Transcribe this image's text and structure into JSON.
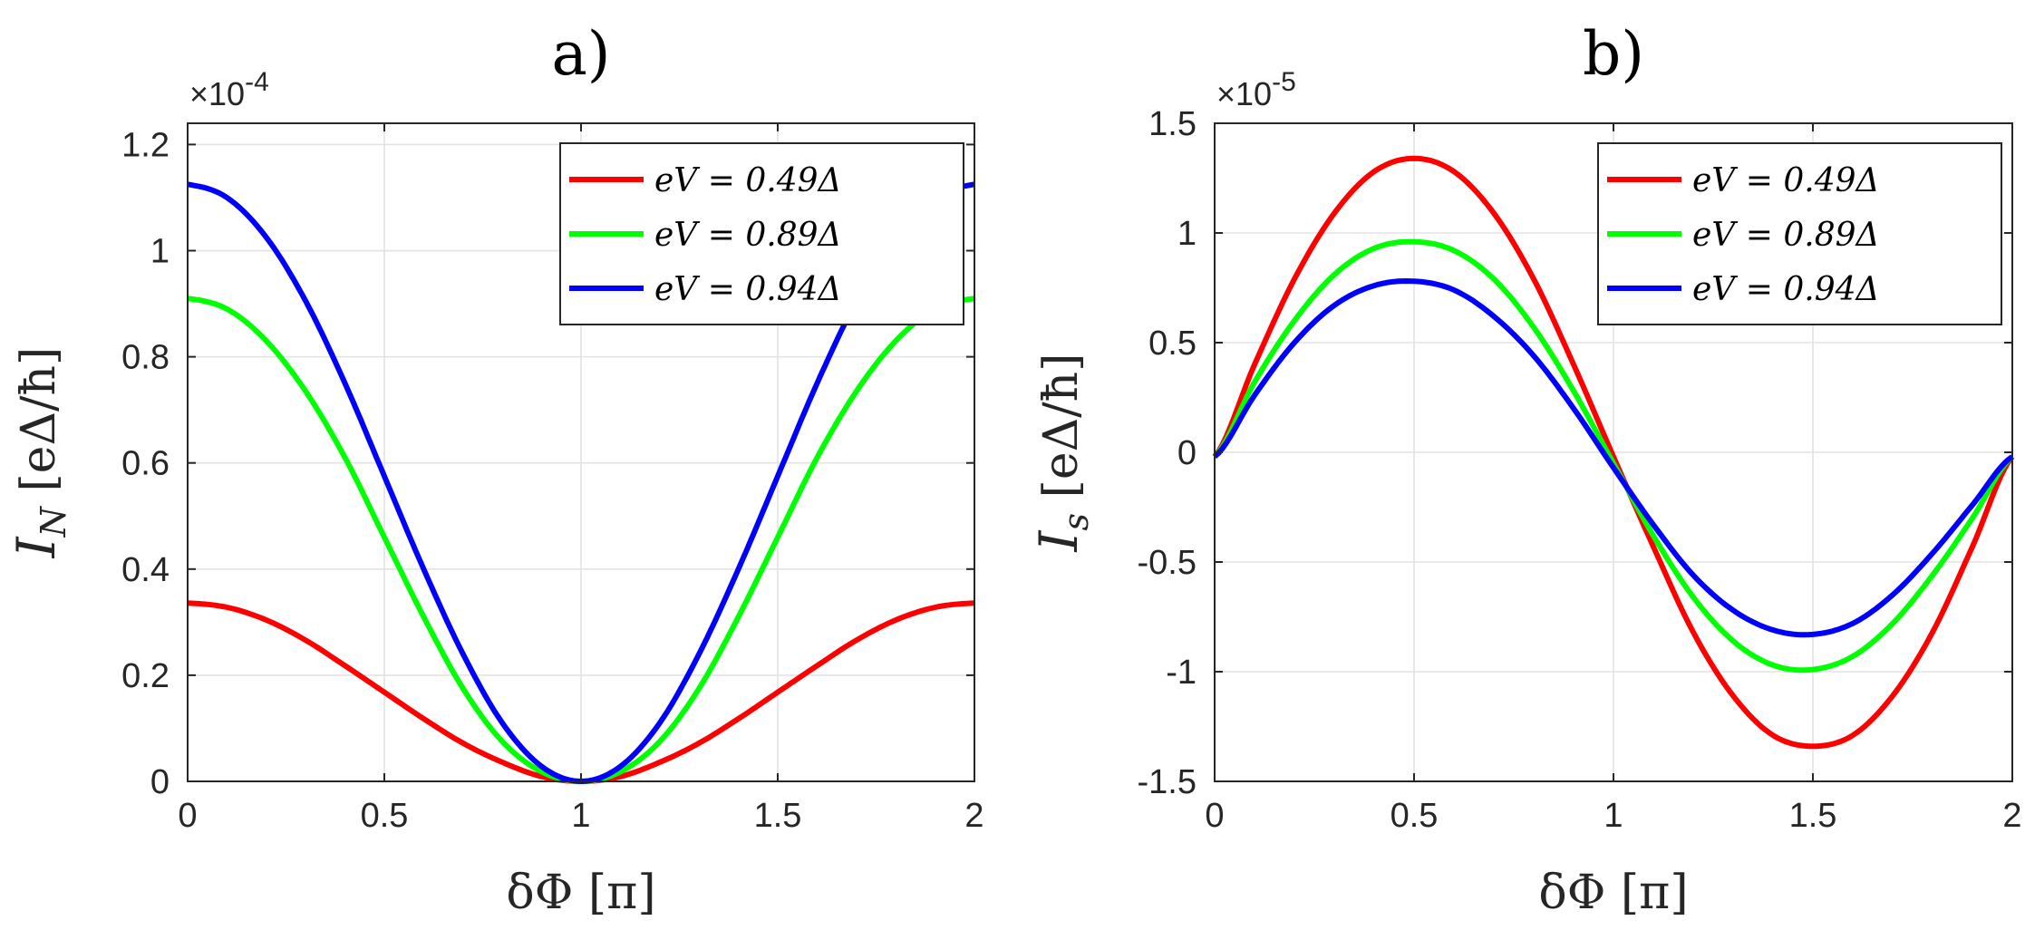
{
  "chart_data": [
    {
      "type": "line",
      "title": "a)",
      "xlabel": "δΦ [π]",
      "ylabel": "I_N [eΔ/ħ]",
      "ylabel_parts": {
        "symbol": "I",
        "subscript": "N",
        "units": "[eΔ/ħ]"
      },
      "exponent": {
        "base": "×10",
        "power": "-4"
      },
      "xlim": [
        0,
        2
      ],
      "ylim": [
        0,
        1.24
      ],
      "xticks": [
        0,
        0.5,
        1,
        1.5,
        2
      ],
      "xtick_labels": [
        "0",
        "0.5",
        "1",
        "1.5",
        "2"
      ],
      "yticks": [
        0,
        0.2,
        0.4,
        0.6,
        0.8,
        1,
        1.2
      ],
      "ytick_labels": [
        "0",
        "0.2",
        "0.4",
        "0.6",
        "0.8",
        "1",
        "1.2"
      ],
      "grid": true,
      "legend_position": "top-right",
      "x": [
        0,
        0.1,
        0.2,
        0.3,
        0.4,
        0.5,
        0.6,
        0.7,
        0.8,
        0.9,
        1.0,
        1.1,
        1.2,
        1.3,
        1.4,
        1.5,
        1.6,
        1.7,
        1.8,
        1.9,
        2.0
      ],
      "series": [
        {
          "name": "eV = 0.49Δ",
          "color": "#ff0000",
          "values": [
            0.336,
            0.328,
            0.304,
            0.266,
            0.218,
            0.168,
            0.118,
            0.072,
            0.036,
            0.009,
            0.0,
            0.009,
            0.036,
            0.072,
            0.118,
            0.168,
            0.218,
            0.266,
            0.304,
            0.328,
            0.336
          ]
        },
        {
          "name": "eV = 0.89Δ",
          "color": "#00ff00",
          "values": [
            0.91,
            0.89,
            0.83,
            0.735,
            0.61,
            0.46,
            0.31,
            0.175,
            0.075,
            0.018,
            0.0,
            0.018,
            0.075,
            0.175,
            0.31,
            0.46,
            0.61,
            0.735,
            0.83,
            0.89,
            0.91
          ]
        },
        {
          "name": "eV = 0.94Δ",
          "color": "#0000ff",
          "values": [
            1.125,
            1.1,
            1.025,
            0.905,
            0.75,
            0.575,
            0.4,
            0.24,
            0.11,
            0.028,
            0.0,
            0.028,
            0.11,
            0.24,
            0.4,
            0.575,
            0.75,
            0.905,
            1.025,
            1.1,
            1.125
          ]
        }
      ]
    },
    {
      "type": "line",
      "title": "b)",
      "xlabel": "δΦ [π]",
      "ylabel": "I_s [eΔ/ħ]",
      "ylabel_parts": {
        "symbol": "I",
        "subscript": "s",
        "units": "[eΔ/ħ]"
      },
      "exponent": {
        "base": "×10",
        "power": "-5"
      },
      "xlim": [
        0,
        2
      ],
      "ylim": [
        -1.5,
        1.5
      ],
      "xticks": [
        0,
        0.5,
        1,
        1.5,
        2
      ],
      "xtick_labels": [
        "0",
        "0.5",
        "1",
        "1.5",
        "2"
      ],
      "yticks": [
        -1.5,
        -1,
        -0.5,
        0,
        0.5,
        1,
        1.5
      ],
      "ytick_labels": [
        "-1.5",
        "-1",
        "-0.5",
        "0",
        "0.5",
        "1",
        "1.5"
      ],
      "grid": true,
      "legend_position": "top-right",
      "x": [
        0,
        0.1,
        0.2,
        0.3,
        0.4,
        0.5,
        0.6,
        0.7,
        0.8,
        0.9,
        1.0,
        1.1,
        1.2,
        1.3,
        1.4,
        1.5,
        1.6,
        1.7,
        1.8,
        1.9,
        2.0
      ],
      "series": [
        {
          "name": "eV = 0.49Δ",
          "color": "#ff0000",
          "values": [
            -0.02,
            0.4,
            0.79,
            1.09,
            1.28,
            1.34,
            1.28,
            1.09,
            0.79,
            0.4,
            -0.02,
            -0.43,
            -0.82,
            -1.11,
            -1.29,
            -1.34,
            -1.29,
            -1.11,
            -0.82,
            -0.43,
            -0.02
          ]
        },
        {
          "name": "eV = 0.89Δ",
          "color": "#00ff00",
          "values": [
            -0.02,
            0.32,
            0.6,
            0.81,
            0.93,
            0.96,
            0.92,
            0.79,
            0.57,
            0.28,
            -0.05,
            -0.38,
            -0.66,
            -0.86,
            -0.97,
            -0.99,
            -0.93,
            -0.78,
            -0.56,
            -0.3,
            -0.02
          ]
        },
        {
          "name": "eV = 0.94Δ",
          "color": "#0000ff",
          "values": [
            -0.02,
            0.26,
            0.5,
            0.67,
            0.76,
            0.78,
            0.74,
            0.62,
            0.44,
            0.2,
            -0.07,
            -0.33,
            -0.56,
            -0.72,
            -0.81,
            -0.83,
            -0.78,
            -0.65,
            -0.46,
            -0.24,
            -0.02
          ]
        }
      ]
    }
  ]
}
